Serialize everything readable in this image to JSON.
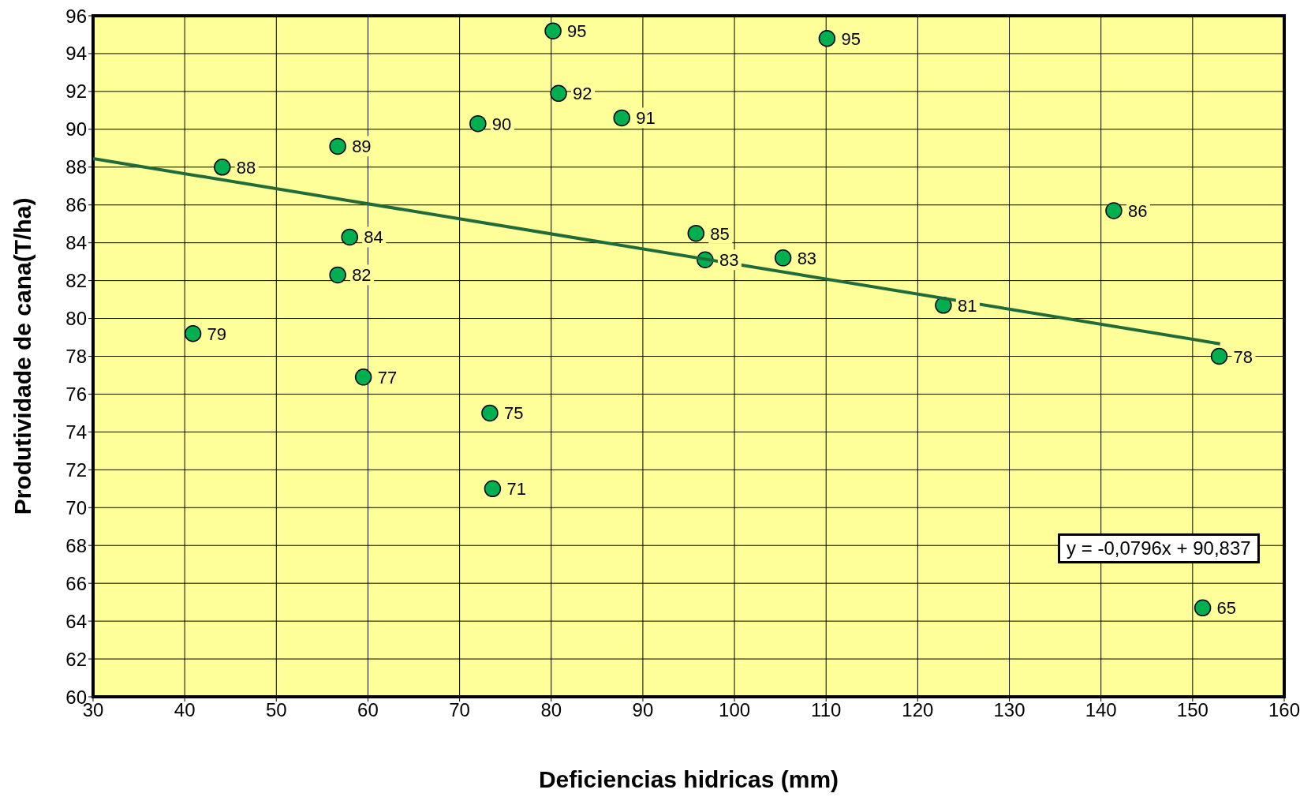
{
  "chart_data": {
    "type": "scatter",
    "xlabel": "Deficiencias hidricas (mm)",
    "ylabel": "Produtividade de cana(T/ha)",
    "xlim": [
      30,
      160
    ],
    "xticks": [
      30,
      40,
      50,
      60,
      70,
      80,
      90,
      100,
      110,
      120,
      130,
      140,
      150,
      160
    ],
    "ylim": [
      60,
      96
    ],
    "yticks": [
      60,
      62,
      64,
      66,
      68,
      70,
      72,
      74,
      76,
      78,
      80,
      82,
      84,
      86,
      88,
      90,
      92,
      94,
      96
    ],
    "grid": true,
    "legend": false,
    "marker": "circle",
    "annotations": [
      "y = -0,0796x + 90,837"
    ],
    "series": [
      {
        "color": "#00b050",
        "x": [
          40.9,
          44.1,
          56.7,
          58.0,
          56.7,
          59.5,
          72.0,
          73.3,
          73.6,
          80.2,
          80.8,
          87.7,
          95.8,
          96.8,
          105.3,
          110.1,
          122.8,
          141.4,
          152.9,
          151.1
        ],
        "values": [
          79.2,
          88.0,
          89.1,
          84.3,
          82.3,
          76.9,
          90.3,
          75.0,
          71.0,
          95.2,
          91.9,
          90.6,
          84.5,
          83.1,
          83.2,
          94.8,
          80.7,
          85.7,
          78.0,
          64.7
        ],
        "value_labels": [
          "79",
          "88",
          "89",
          "84",
          "82",
          "77",
          "90",
          "75",
          "71",
          "95",
          "92",
          "91",
          "85",
          "83",
          "83",
          "95",
          "81",
          "86",
          "78",
          "65"
        ]
      },
      {
        "type": "line",
        "marker": "none",
        "color": "#1f6b3a",
        "x": [
          30,
          153
        ],
        "values": [
          88.45,
          78.66
        ]
      }
    ]
  }
}
